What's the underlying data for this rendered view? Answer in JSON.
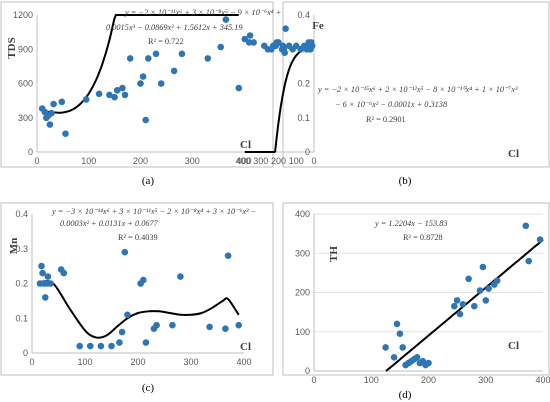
{
  "chart_data": [
    {
      "type": "scatter",
      "caption": "(a)",
      "ylabel": "TDS",
      "xlabel": "Cl",
      "xlim": [
        0,
        400
      ],
      "ylim": [
        0,
        1200
      ],
      "xticks": [
        0,
        100,
        200,
        300,
        400
      ],
      "yticks": [
        0,
        300,
        600,
        900,
        1200
      ],
      "yticklabels": [
        "0",
        "300",
        "600",
        "900",
        "1200"
      ],
      "equation_lines": [
        "y = −2 × 10⁻¹¹x⁶ + 3 × 10⁻⁸x⁵ − 9 × 10⁻⁶x⁴ +",
        "0.0015x³ − 0.0869x² + 1.5612x + 345.19"
      ],
      "r2": "R² = 0.722",
      "fit": {
        "kind": "poly",
        "coeffs": [
          345.19,
          1.5612,
          -0.0869,
          0.0015,
          -9e-06,
          3e-08,
          -2e-11
        ],
        "range": [
          10,
          390
        ]
      },
      "x": [
        10,
        15,
        18,
        22,
        25,
        28,
        32,
        48,
        55,
        95,
        120,
        140,
        150,
        155,
        165,
        170,
        180,
        200,
        205,
        210,
        215,
        230,
        240,
        265,
        280,
        330,
        355,
        365,
        390
      ],
      "y": [
        380,
        350,
        300,
        320,
        240,
        340,
        420,
        440,
        160,
        460,
        510,
        500,
        480,
        540,
        560,
        500,
        820,
        600,
        660,
        280,
        820,
        860,
        600,
        710,
        860,
        820,
        920,
        1160,
        560
      ]
    },
    {
      "type": "scatter",
      "caption": "(b)",
      "ylabel": "Fe",
      "xlabel": "Cl",
      "xlim": [
        0,
        400
      ],
      "ylim": [
        0,
        0.4
      ],
      "xticks": [
        0,
        100,
        200,
        300,
        400
      ],
      "yticks": [
        0,
        0.1,
        0.2,
        0.3,
        0.4
      ],
      "yticklabels": [
        "0",
        "0.1",
        "0.2",
        "0.3",
        "0.4"
      ],
      "equation_lines": [
        "y = −2 × 10⁻¹⁵x⁶ + 2 × 10⁻¹²x⁵ − 8 × 10⁻¹⁰x⁴ + 1 × 10⁻⁷x³",
        "− 6 × 10⁻⁶x² − 0.0001x + 0.3138"
      ],
      "r2": "R² = 0.2901",
      "fit": {
        "kind": "poly",
        "coeffs": [
          0.3138,
          -0.0001,
          -6e-06,
          1e-07,
          -8e-10,
          2e-12,
          -2e-15
        ],
        "range": [
          10,
          390
        ]
      },
      "x": [
        10,
        15,
        20,
        25,
        30,
        40,
        55,
        75,
        100,
        120,
        140,
        160,
        165,
        170,
        175,
        180,
        200,
        210,
        215,
        230,
        240,
        260,
        280,
        340,
        360,
        365,
        390
      ],
      "y": [
        0.31,
        0.32,
        0.3,
        0.31,
        0.32,
        0.3,
        0.31,
        0.3,
        0.31,
        0.3,
        0.31,
        0.36,
        0.29,
        0.3,
        0.31,
        0.3,
        0.32,
        0.32,
        0.31,
        0.31,
        0.3,
        0.3,
        0.31,
        0.32,
        0.34,
        0.32,
        0.33
      ]
    },
    {
      "type": "scatter",
      "caption": "(c)",
      "ylabel": "Mn",
      "xlabel": "Cl",
      "xlim": [
        0,
        400
      ],
      "ylim": [
        0,
        0.4
      ],
      "xticks": [
        0,
        100,
        200,
        300,
        400
      ],
      "yticks": [
        0,
        0.1,
        0.2,
        0.3,
        0.4
      ],
      "yticklabels": [
        "0",
        "0.1",
        "0.2",
        "0.3",
        "0.4"
      ],
      "equation_lines": [
        "y = −3 × 10⁻¹⁴x⁶ + 3 × 10⁻¹¹x⁵ − 2 × 10⁻⁸x⁴ + 3 × 10⁻⁶x³ −",
        "0.0003x² + 0.0131x + 0.0677"
      ],
      "r2": "R² = 0.4039",
      "fit": {
        "kind": "spline",
        "x": [
          15,
          40,
          70,
          100,
          120,
          140,
          160,
          180,
          200,
          220,
          240,
          260,
          280,
          300,
          320,
          340,
          360,
          370,
          390
        ],
        "y": [
          0.205,
          0.2,
          0.13,
          0.065,
          0.045,
          0.05,
          0.075,
          0.1,
          0.115,
          0.12,
          0.12,
          0.115,
          0.11,
          0.11,
          0.115,
          0.13,
          0.15,
          0.155,
          0.11
        ]
      },
      "x": [
        15,
        18,
        20,
        22,
        25,
        28,
        30,
        35,
        55,
        60,
        90,
        110,
        130,
        150,
        165,
        170,
        175,
        180,
        205,
        210,
        215,
        230,
        235,
        265,
        280,
        335,
        365,
        370,
        390
      ],
      "y": [
        0.2,
        0.25,
        0.23,
        0.2,
        0.16,
        0.2,
        0.22,
        0.2,
        0.24,
        0.23,
        0.02,
        0.02,
        0.02,
        0.02,
        0.03,
        0.06,
        0.29,
        0.11,
        0.2,
        0.21,
        0.03,
        0.07,
        0.08,
        0.08,
        0.22,
        0.075,
        0.07,
        0.28,
        0.08
      ]
    },
    {
      "type": "scatter",
      "caption": "(d)",
      "ylabel": "TH",
      "xlabel": "Cl",
      "xlim": [
        0,
        400
      ],
      "ylim": [
        0,
        400
      ],
      "xticks": [
        0,
        100,
        200,
        300,
        400
      ],
      "yticks": [
        0,
        100,
        200,
        300,
        400
      ],
      "yticklabels": [
        "0",
        "100",
        "200",
        "300",
        "400"
      ],
      "equation_lines": [
        "y = 1.2204x − 153.83"
      ],
      "r2": "R² = 0.8728",
      "fit": {
        "kind": "poly",
        "coeffs": [
          -153.83,
          1.2204
        ],
        "range": [
          126,
          400
        ]
      },
      "x": [
        125,
        140,
        145,
        150,
        155,
        160,
        165,
        170,
        175,
        180,
        185,
        190,
        195,
        200,
        245,
        250,
        255,
        260,
        270,
        280,
        290,
        295,
        300,
        305,
        315,
        320,
        370,
        375,
        395
      ],
      "y": [
        60,
        35,
        120,
        95,
        60,
        15,
        20,
        25,
        30,
        35,
        20,
        25,
        15,
        20,
        165,
        180,
        145,
        170,
        235,
        165,
        205,
        265,
        180,
        210,
        220,
        230,
        370,
        280,
        335
      ]
    }
  ]
}
